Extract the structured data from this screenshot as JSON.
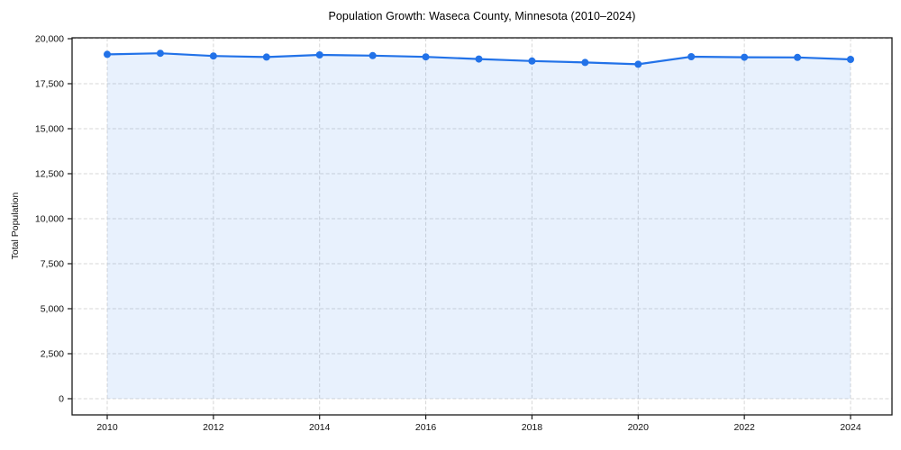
{
  "figure": {
    "background": "#ffffff",
    "frame_color": "#1a1a1a",
    "grid_color": "#d7d7d7",
    "tick_label_color": "#111111"
  },
  "chart_data": {
    "type": "line",
    "title": "Population Growth: Waseca County, Minnesota (2010–2024)",
    "xlabel": "",
    "ylabel": "Total Population",
    "x": [
      2010,
      2011,
      2012,
      2013,
      2014,
      2015,
      2016,
      2017,
      2018,
      2019,
      2020,
      2021,
      2022,
      2023,
      2024
    ],
    "series": [
      {
        "name": "Total Population",
        "values": [
          19130,
          19190,
          19040,
          18980,
          19100,
          19060,
          18990,
          18870,
          18760,
          18680,
          18580,
          19000,
          18970,
          18960,
          18850
        ]
      }
    ],
    "ylim": [
      0,
      20000
    ],
    "yticks": [
      0,
      2500,
      5000,
      7500,
      10000,
      12500,
      15000,
      17500,
      20000
    ],
    "xticks": [
      2010,
      2012,
      2014,
      2016,
      2018,
      2020,
      2022,
      2024
    ],
    "grid": true,
    "grid_style": "dashed",
    "legend_position": "none",
    "line_color": "#2272e8",
    "marker": "circle",
    "marker_size": 4,
    "line_width": 2.2,
    "area_fill": true,
    "area_opacity": 0.1,
    "axes_box": true
  }
}
